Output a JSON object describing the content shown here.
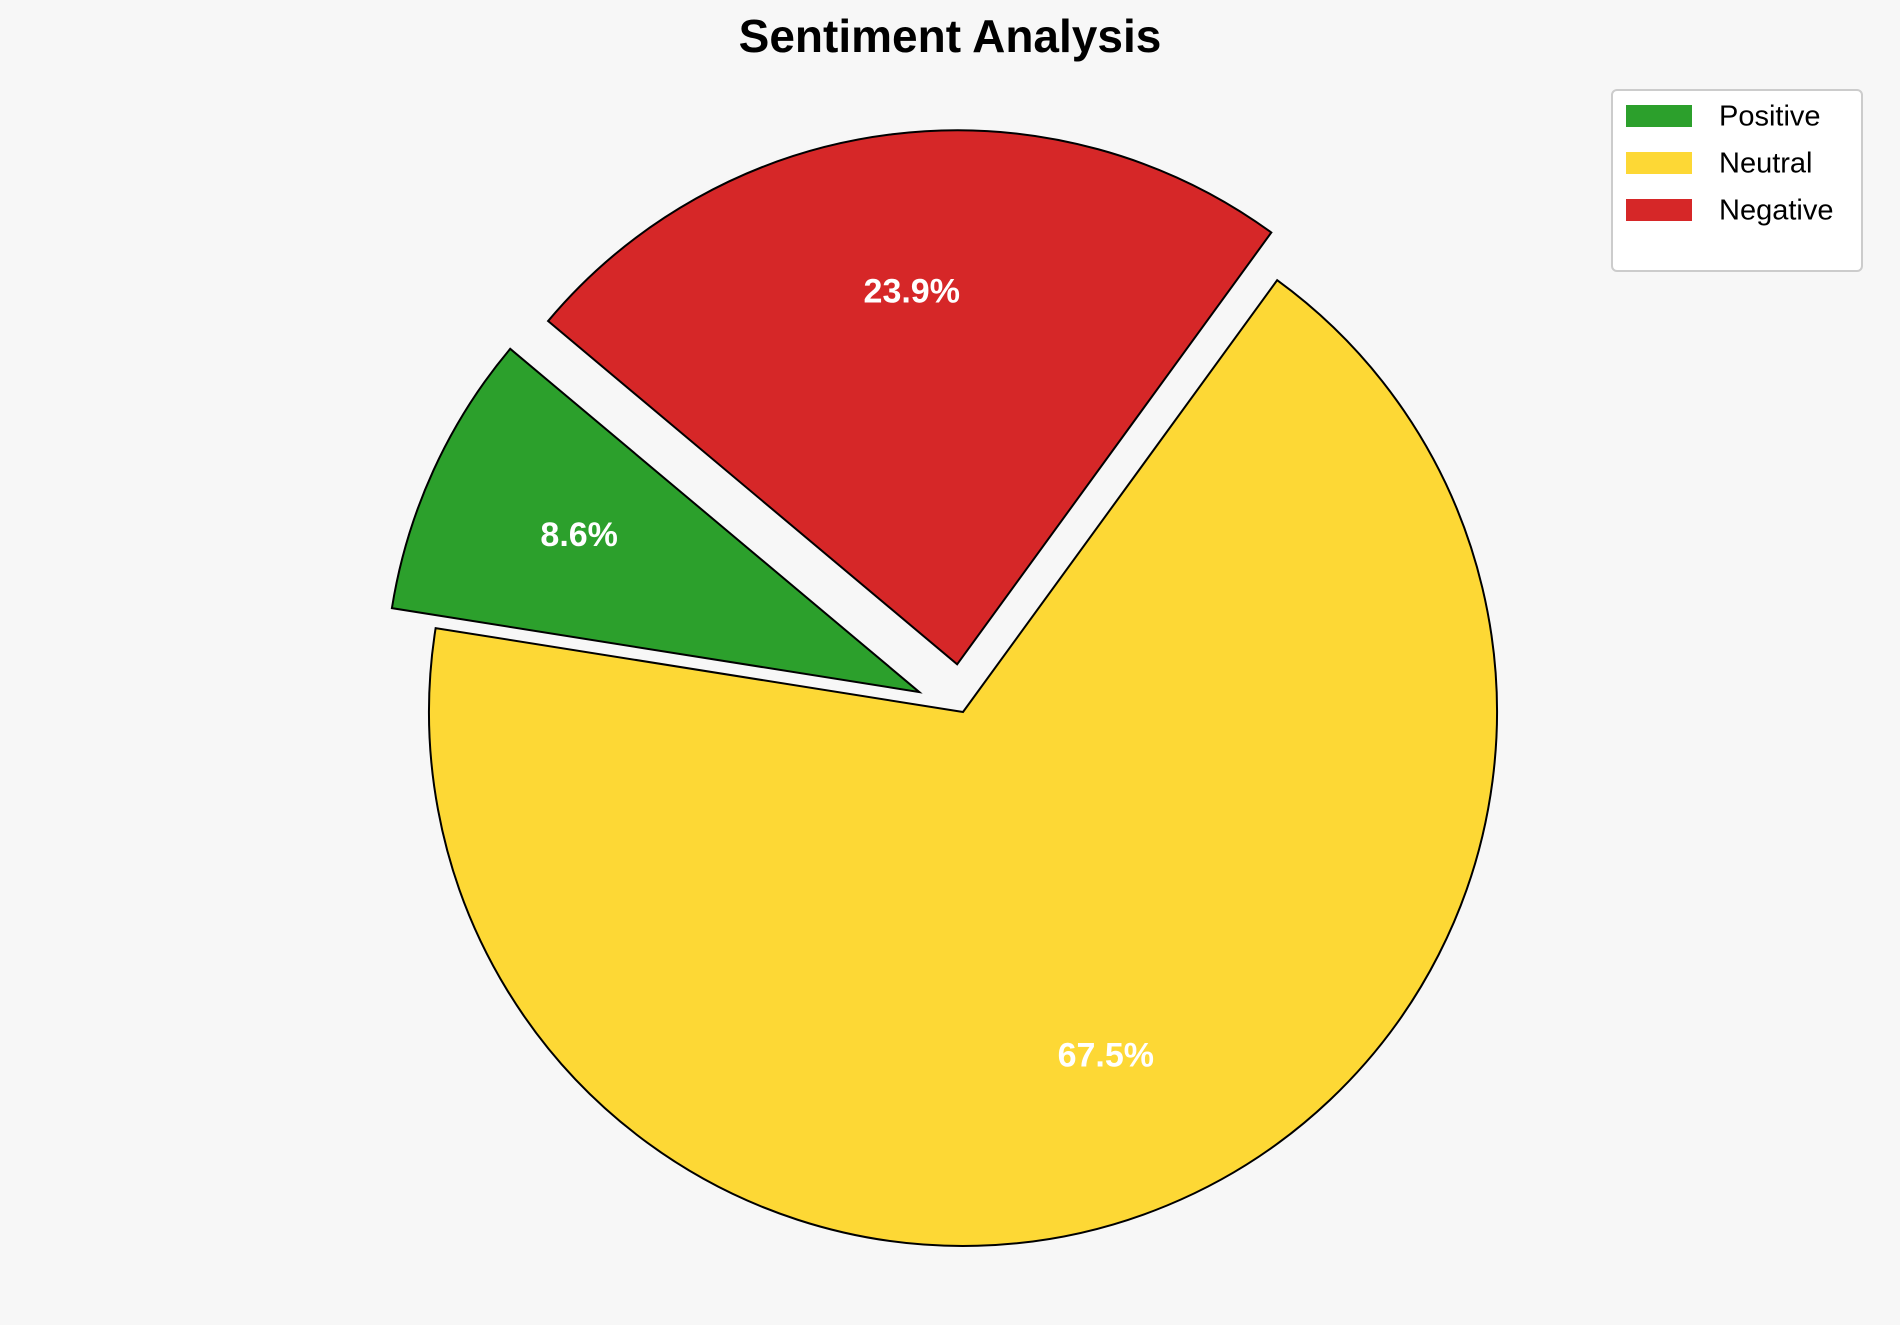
{
  "chart_data": {
    "type": "pie",
    "title": "Sentiment Analysis",
    "categories": [
      "Positive",
      "Neutral",
      "Negative"
    ],
    "values": [
      8.6,
      67.5,
      23.9
    ],
    "value_labels": [
      "8.6%",
      "67.5%",
      "23.9%"
    ],
    "colors": [
      "#2ca02c",
      "#fdd835",
      "#d62728"
    ],
    "legend": "upper right"
  }
}
